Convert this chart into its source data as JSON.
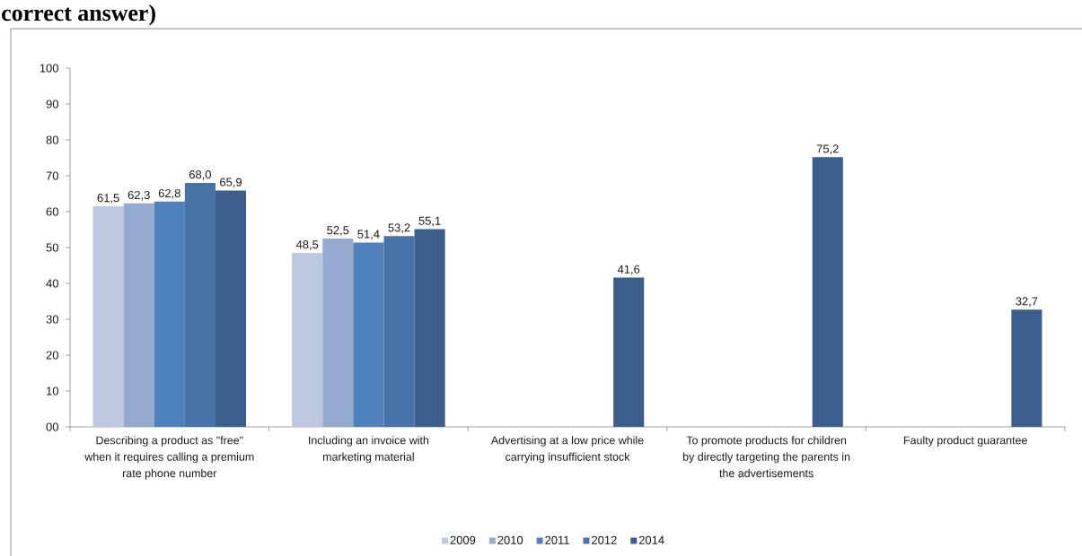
{
  "chart_data": {
    "type": "bar",
    "title": "correct answer)",
    "categories": [
      "Describing a product as \"free\" when it requires calling a premium rate phone number",
      "Including an invoice with marketing material",
      "Advertising at a low price while carrying insufficient stock",
      "To promote products for children by directly targeting the parents in the advertisements",
      "Faulty product guarantee"
    ],
    "series": [
      {
        "name": "2009",
        "color": "#bcc8e0",
        "values": [
          61.5,
          48.5,
          null,
          null,
          null
        ],
        "value_labels": [
          "61,5",
          "48,5",
          null,
          null,
          null
        ]
      },
      {
        "name": "2010",
        "color": "#95aacf",
        "values": [
          62.3,
          52.5,
          null,
          null,
          null
        ],
        "value_labels": [
          "62,3",
          "52,5",
          null,
          null,
          null
        ]
      },
      {
        "name": "2011",
        "color": "#4f81bd",
        "values": [
          62.8,
          51.4,
          null,
          null,
          null
        ],
        "value_labels": [
          "62,8",
          "51,4",
          null,
          null,
          null
        ]
      },
      {
        "name": "2012",
        "color": "#4572a7",
        "values": [
          68.0,
          53.2,
          null,
          null,
          null
        ],
        "value_labels": [
          "68,0",
          "53,2",
          null,
          null,
          null
        ]
      },
      {
        "name": "2014",
        "color": "#3b5e8c",
        "values": [
          65.9,
          55.1,
          41.6,
          75.2,
          32.7
        ],
        "value_labels": [
          "65,9",
          "55,1",
          "41,6",
          "75,2",
          "32,7"
        ]
      }
    ],
    "ylim": [
      0,
      100
    ],
    "yticks": [
      {
        "value": 0,
        "label": "00"
      },
      10,
      20,
      30,
      40,
      50,
      60,
      70,
      80,
      90,
      100
    ],
    "legend": "bottom"
  }
}
